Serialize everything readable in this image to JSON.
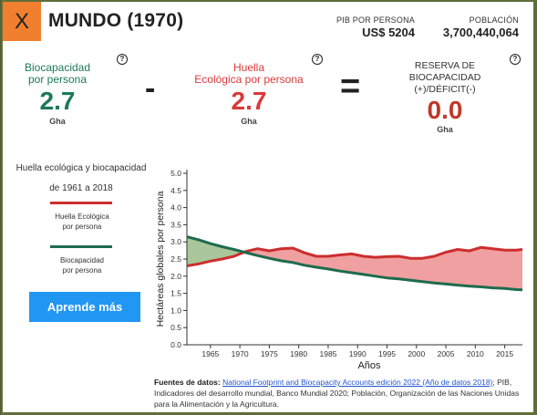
{
  "header": {
    "close_label": "X",
    "title": "MUNDO (1970)",
    "gdp_label": "PIB POR PERSONA",
    "gdp_value": "US$ 5204",
    "population_label": "POBLACIÓN",
    "population_value": "3,700,440,064"
  },
  "metrics": {
    "biocapacity": {
      "label_line1": "Biocapacidad",
      "label_line2": "por persona",
      "value": "2.7",
      "unit": "Gha",
      "color": "#1b7a5a"
    },
    "minus": "-",
    "footprint": {
      "label_line1": "Huella",
      "label_line2": "Ecológica por persona",
      "value": "2.7",
      "unit": "Gha",
      "color": "#d83a3a"
    },
    "equals": "=",
    "reserve": {
      "label_line1": "RESERVA DE",
      "label_line2": "BIOCAPACIDAD",
      "label_line3": "(+)/DÉFICIT(-)",
      "value": "0.0",
      "unit": "Gha",
      "color": "#c0392b"
    },
    "help_glyph": "?"
  },
  "sidebar": {
    "title_line1": "Huella ecológica y biocapacidad",
    "title_line2": "de 1961 a 2018",
    "legend": [
      {
        "line1": "Huella Ecológica",
        "line2": "por persona",
        "color": "#cc2e2e"
      },
      {
        "line1": "Biocapacidad",
        "line2": "por persona",
        "color": "#1e6b4e"
      }
    ],
    "learn_button": "Aprende más"
  },
  "chart_data": {
    "type": "area",
    "xlabel": "Años",
    "ylabel": "Hectáreas globales por persona",
    "xlim": [
      1961,
      2018
    ],
    "ylim": [
      0,
      5.0
    ],
    "x_ticks": [
      1965,
      1970,
      1975,
      1980,
      1985,
      1990,
      1995,
      2000,
      2005,
      2010,
      2015
    ],
    "y_ticks": [
      "0.0",
      "0.5",
      "1.0",
      "1.5",
      "2.0",
      "2.5",
      "3.0",
      "3.5",
      "4.0",
      "4.5",
      "5.0"
    ],
    "x": [
      1961,
      1963,
      1965,
      1967,
      1969,
      1971,
      1973,
      1975,
      1977,
      1979,
      1981,
      1983,
      1985,
      1987,
      1989,
      1991,
      1993,
      1995,
      1997,
      1999,
      2001,
      2003,
      2005,
      2007,
      2009,
      2011,
      2013,
      2015,
      2017,
      2018
    ],
    "series": [
      {
        "name": "Huella Ecológica por persona",
        "color": "#cc2e2e",
        "values": [
          2.3,
          2.36,
          2.44,
          2.5,
          2.58,
          2.72,
          2.8,
          2.74,
          2.8,
          2.82,
          2.68,
          2.58,
          2.58,
          2.62,
          2.65,
          2.58,
          2.55,
          2.57,
          2.58,
          2.52,
          2.52,
          2.58,
          2.7,
          2.78,
          2.74,
          2.84,
          2.8,
          2.76,
          2.76,
          2.78
        ]
      },
      {
        "name": "Biocapacidad por persona",
        "color": "#1e6b4e",
        "values": [
          3.15,
          3.06,
          2.95,
          2.86,
          2.78,
          2.69,
          2.6,
          2.52,
          2.45,
          2.4,
          2.32,
          2.26,
          2.21,
          2.15,
          2.1,
          2.05,
          2.0,
          1.95,
          1.92,
          1.88,
          1.84,
          1.8,
          1.77,
          1.74,
          1.71,
          1.69,
          1.66,
          1.64,
          1.61,
          1.6
        ]
      }
    ],
    "fill_deficit": "#f0a0a0",
    "fill_reserve": "#a9c79a",
    "grid": false
  },
  "sources": {
    "heading": "Fuentes de datos:",
    "link_text": "National Footprint and Biocapacity Accounts edición 2022 (Año de datos 2018)",
    "rest": "; PIB, Indicadores del desarrollo mundial, Banco Mundial 2020; Población, Organización de las Naciones Unidas para la Alimentación y la Agricultura."
  }
}
